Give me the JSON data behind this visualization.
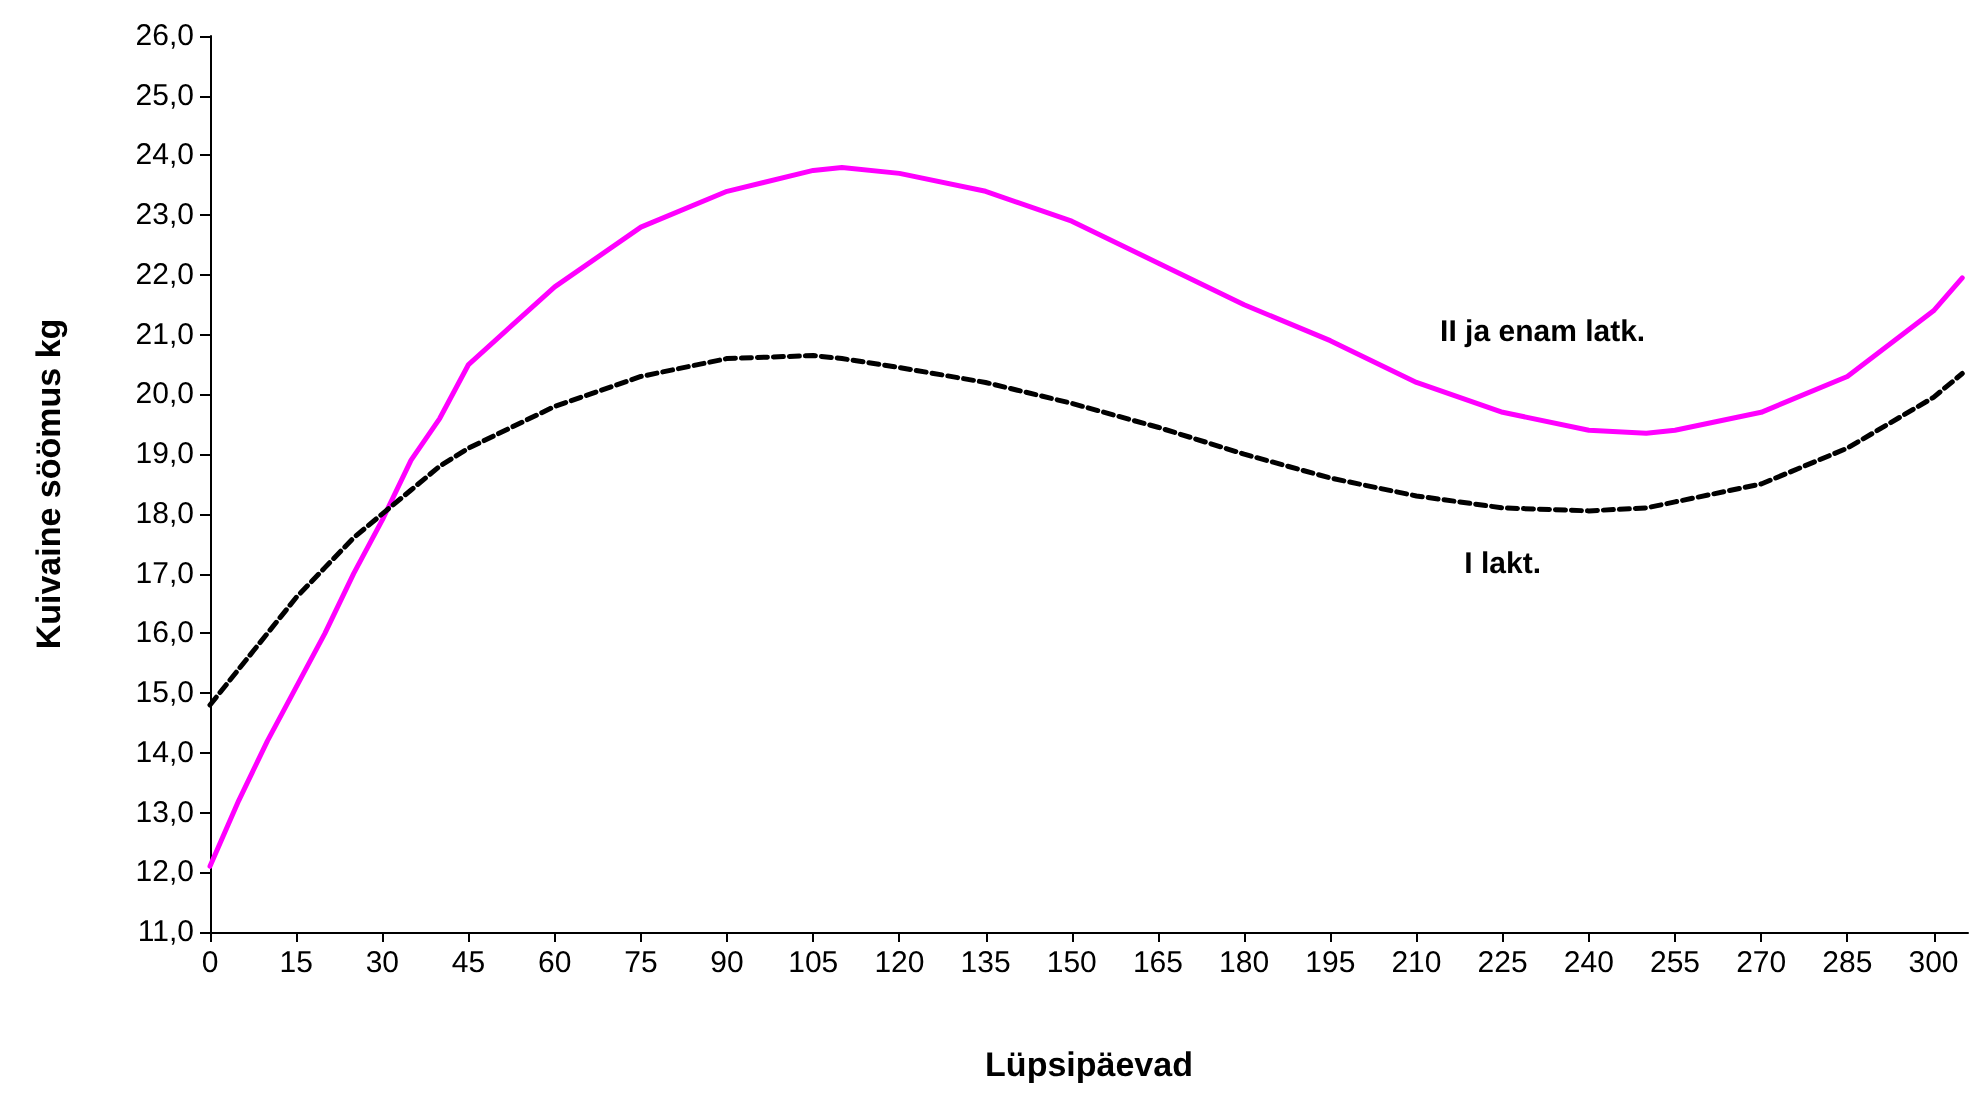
{
  "chart_data": {
    "type": "line",
    "xlabel": "Lüpsipäevad",
    "ylabel": "Kuivaine söömus kg",
    "grid": false,
    "legend": false,
    "marker": "none",
    "xlim": [
      0,
      306
    ],
    "xticks": [
      0,
      15,
      30,
      45,
      60,
      75,
      90,
      105,
      120,
      135,
      150,
      165,
      180,
      195,
      210,
      225,
      240,
      255,
      270,
      285,
      300
    ],
    "ylim": [
      11,
      26
    ],
    "yticks": [
      {
        "value": 11,
        "label": "11,0"
      },
      {
        "value": 12,
        "label": "12,0"
      },
      {
        "value": 13,
        "label": "13,0"
      },
      {
        "value": 14,
        "label": "14,0"
      },
      {
        "value": 15,
        "label": "15,0"
      },
      {
        "value": 16,
        "label": "16,0"
      },
      {
        "value": 17,
        "label": "17,0"
      },
      {
        "value": 18,
        "label": "18,0"
      },
      {
        "value": 19,
        "label": "19,0"
      },
      {
        "value": 20,
        "label": "20,0"
      },
      {
        "value": 21,
        "label": "21,0"
      },
      {
        "value": 22,
        "label": "22,0"
      },
      {
        "value": 23,
        "label": "23,0"
      },
      {
        "value": 24,
        "label": "24,0"
      },
      {
        "value": 25,
        "label": "25,0"
      },
      {
        "value": 26,
        "label": "26,0"
      }
    ],
    "x": [
      0,
      5,
      10,
      15,
      20,
      25,
      30,
      35,
      40,
      45,
      60,
      75,
      90,
      105,
      110,
      120,
      135,
      150,
      165,
      180,
      195,
      210,
      225,
      240,
      250,
      255,
      270,
      285,
      300,
      305
    ],
    "series": [
      {
        "name": "II ja enam latk.",
        "color": "#ff00ff",
        "line_style": "solid",
        "values": [
          12.1,
          13.2,
          14.2,
          15.1,
          16.0,
          17.0,
          17.9,
          18.9,
          19.6,
          20.5,
          21.8,
          22.8,
          23.4,
          23.75,
          23.8,
          23.7,
          23.4,
          22.9,
          22.2,
          21.5,
          20.9,
          20.2,
          19.7,
          19.4,
          19.35,
          19.4,
          19.7,
          20.3,
          21.4,
          21.95
        ]
      },
      {
        "name": "I lakt.",
        "color": "#000000",
        "line_style": "dashed",
        "values": [
          14.8,
          15.4,
          16.0,
          16.6,
          17.1,
          17.6,
          18.0,
          18.4,
          18.8,
          19.1,
          19.8,
          20.3,
          20.6,
          20.65,
          20.6,
          20.45,
          20.2,
          19.85,
          19.45,
          19.0,
          18.6,
          18.3,
          18.1,
          18.05,
          18.1,
          18.2,
          18.5,
          19.1,
          19.95,
          20.35
        ]
      }
    ]
  }
}
